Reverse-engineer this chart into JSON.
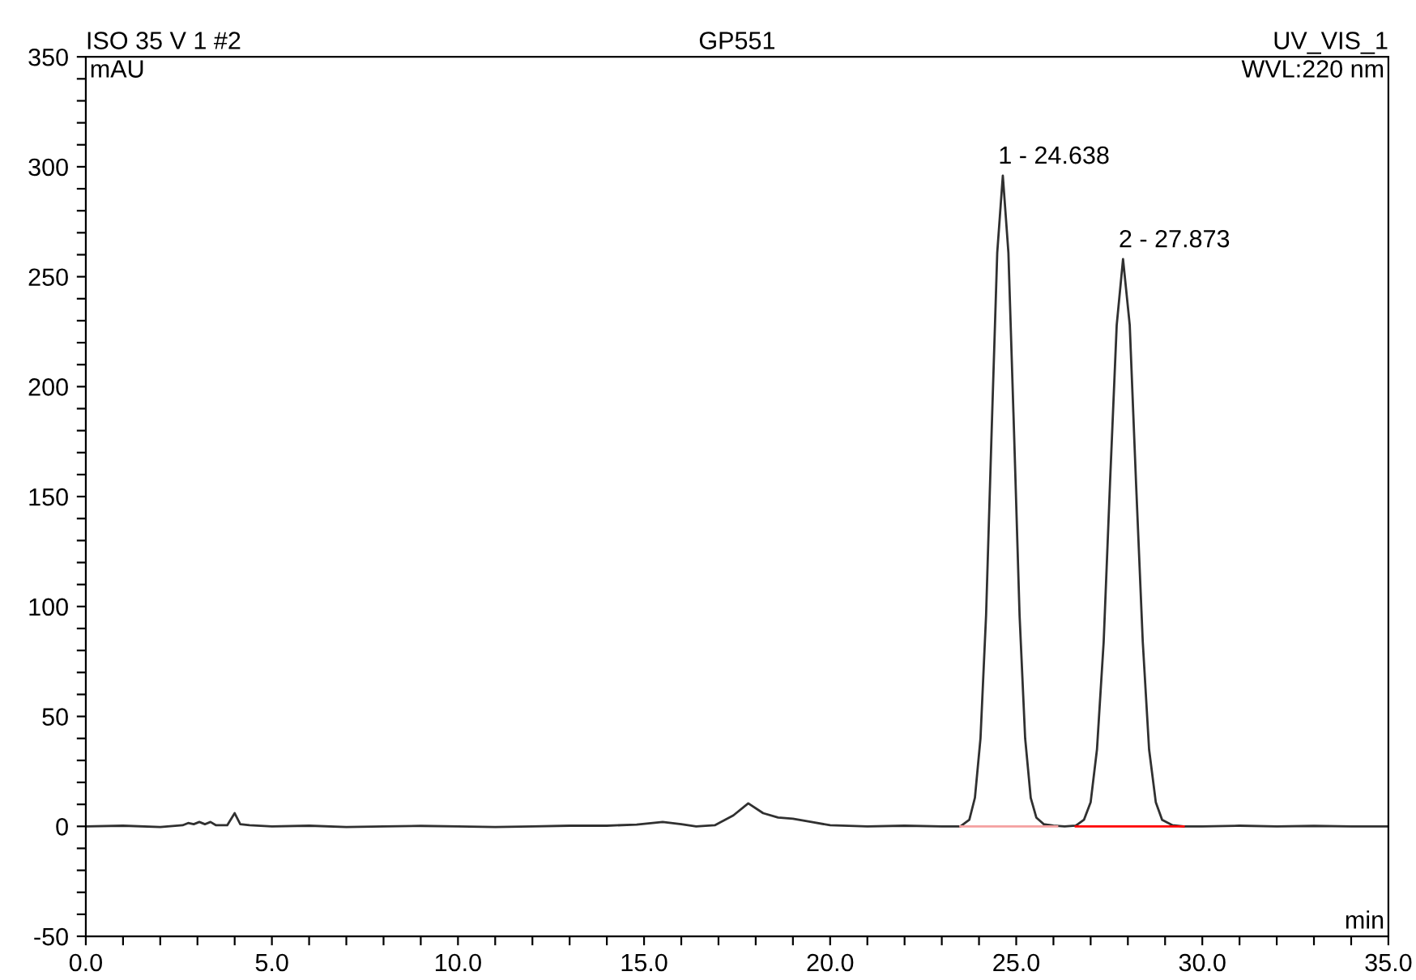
{
  "chart_data": {
    "type": "line",
    "title": "ISO 35 V 1 #2",
    "subtitle": "GP551",
    "xlabel": "min",
    "ylabel": "mAU",
    "annotations": [
      "UV_VIS_1",
      "WVL:220 nm",
      {
        "text": "1 - 24.638",
        "x": 24.638,
        "y": 296
      },
      {
        "text": "2 - 27.873",
        "x": 27.873,
        "y": 258
      }
    ],
    "series": [
      {
        "color": "#303030",
        "x": [
          0,
          1,
          2,
          2.6,
          2.75,
          2.9,
          3.05,
          3.2,
          3.35,
          3.5,
          3.8,
          4.0,
          4.15,
          4.4,
          5,
          6,
          7,
          8,
          9,
          10,
          11,
          12,
          13,
          14,
          14.8,
          15.5,
          16.0,
          16.4,
          16.9,
          17.4,
          17.8,
          18.2,
          18.6,
          19.0,
          19.5,
          20,
          21,
          22,
          23,
          23.5,
          23.74,
          23.89,
          24.04,
          24.19,
          24.34,
          24.49,
          24.64,
          24.79,
          24.94,
          25.09,
          25.24,
          25.39,
          25.54,
          25.74,
          26.0,
          26.3,
          26.6,
          26.82,
          27.0,
          27.17,
          27.35,
          27.52,
          27.7,
          27.87,
          28.05,
          28.22,
          28.4,
          28.57,
          28.75,
          28.92,
          29.2,
          29.5,
          30,
          31,
          32,
          33,
          34,
          35
        ],
        "values": [
          0,
          0.3,
          -0.3,
          0.5,
          1.5,
          1,
          2,
          1,
          2,
          0.5,
          0.5,
          6,
          1,
          0.5,
          0,
          0.3,
          -0.3,
          0,
          0.2,
          0,
          -0.3,
          0,
          0.3,
          0.3,
          0.8,
          2,
          1,
          0,
          0.5,
          5,
          10.5,
          6,
          4,
          3.5,
          2,
          0.5,
          0,
          0.3,
          0,
          0,
          3,
          13,
          40,
          96,
          180,
          261,
          296,
          261,
          180,
          96,
          40,
          13,
          4,
          1,
          0.3,
          0,
          0.3,
          3,
          11,
          35,
          84,
          156,
          228,
          258,
          228,
          156,
          84,
          35,
          11,
          3,
          0.5,
          0,
          0,
          0.3,
          0,
          0.2,
          0,
          0
        ]
      },
      {
        "color": "#f4a0a0",
        "x": [
          23.5,
          26.1
        ],
        "values": [
          0,
          0
        ]
      },
      {
        "color": "#ff0000",
        "x": [
          26.6,
          29.5
        ],
        "values": [
          0,
          0
        ]
      }
    ],
    "xlim": [
      0,
      35
    ],
    "xticks": [
      {
        "value": 0,
        "label": "0.0"
      },
      {
        "value": 1,
        "label": null
      },
      {
        "value": 2,
        "label": null
      },
      {
        "value": 3,
        "label": null
      },
      {
        "value": 4,
        "label": null
      },
      {
        "value": 5,
        "label": "5.0"
      },
      {
        "value": 6,
        "label": null
      },
      {
        "value": 7,
        "label": null
      },
      {
        "value": 8,
        "label": null
      },
      {
        "value": 9,
        "label": null
      },
      {
        "value": 10,
        "label": "10.0"
      },
      {
        "value": 11,
        "label": null
      },
      {
        "value": 12,
        "label": null
      },
      {
        "value": 13,
        "label": null
      },
      {
        "value": 14,
        "label": null
      },
      {
        "value": 15,
        "label": "15.0"
      },
      {
        "value": 16,
        "label": null
      },
      {
        "value": 17,
        "label": null
      },
      {
        "value": 18,
        "label": null
      },
      {
        "value": 19,
        "label": null
      },
      {
        "value": 20,
        "label": "20.0"
      },
      {
        "value": 21,
        "label": null
      },
      {
        "value": 22,
        "label": null
      },
      {
        "value": 23,
        "label": null
      },
      {
        "value": 24,
        "label": null
      },
      {
        "value": 25,
        "label": "25.0"
      },
      {
        "value": 26,
        "label": null
      },
      {
        "value": 27,
        "label": null
      },
      {
        "value": 28,
        "label": null
      },
      {
        "value": 29,
        "label": null
      },
      {
        "value": 30,
        "label": "30.0"
      },
      {
        "value": 31,
        "label": null
      },
      {
        "value": 32,
        "label": null
      },
      {
        "value": 33,
        "label": null
      },
      {
        "value": 34,
        "label": null
      },
      {
        "value": 35,
        "label": "35.0"
      }
    ],
    "ylim": [
      -50,
      350
    ],
    "yticks": [
      -50,
      {
        "value": -40,
        "label": null
      },
      {
        "value": -30,
        "label": null
      },
      {
        "value": -20,
        "label": null
      },
      {
        "value": -10,
        "label": null
      },
      0,
      {
        "value": 10,
        "label": null
      },
      {
        "value": 20,
        "label": null
      },
      {
        "value": 30,
        "label": null
      },
      {
        "value": 40,
        "label": null
      },
      50,
      {
        "value": 60,
        "label": null
      },
      {
        "value": 70,
        "label": null
      },
      {
        "value": 80,
        "label": null
      },
      {
        "value": 90,
        "label": null
      },
      100,
      {
        "value": 110,
        "label": null
      },
      {
        "value": 120,
        "label": null
      },
      {
        "value": 130,
        "label": null
      },
      {
        "value": 140,
        "label": null
      },
      150,
      {
        "value": 160,
        "label": null
      },
      {
        "value": 170,
        "label": null
      },
      {
        "value": 180,
        "label": null
      },
      {
        "value": 190,
        "label": null
      },
      200,
      {
        "value": 210,
        "label": null
      },
      {
        "value": 220,
        "label": null
      },
      {
        "value": 230,
        "label": null
      },
      {
        "value": 240,
        "label": null
      },
      250,
      {
        "value": 260,
        "label": null
      },
      {
        "value": 270,
        "label": null
      },
      {
        "value": 280,
        "label": null
      },
      {
        "value": 290,
        "label": null
      },
      300,
      {
        "value": 310,
        "label": null
      },
      {
        "value": 320,
        "label": null
      },
      {
        "value": 330,
        "label": null
      },
      {
        "value": 340,
        "label": null
      },
      350
    ],
    "grid": false,
    "legend": false
  }
}
